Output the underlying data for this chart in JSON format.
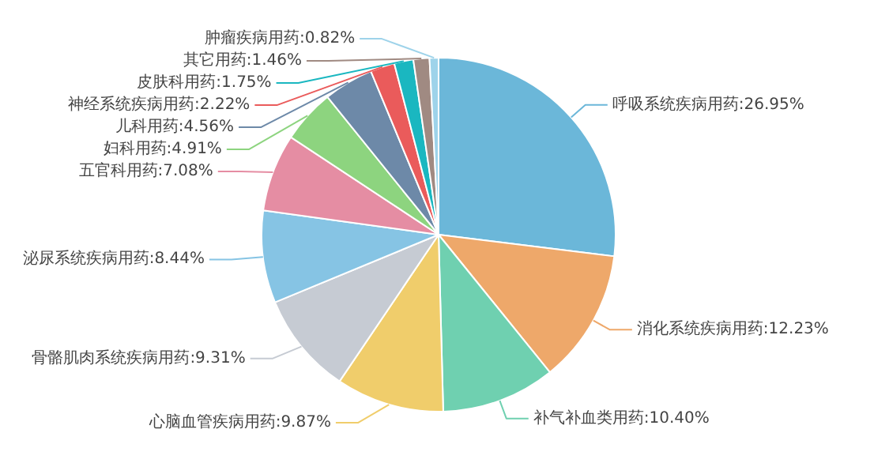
{
  "chart_data": {
    "type": "pie",
    "categories": [
      "呼吸系统疾病用药",
      "消化系统疾病用药",
      "补气补血类用药",
      "心脑血管疾病用药",
      "骨骼肌肉系统疾病用药",
      "泌尿系统疾病用药",
      "五官科用药",
      "妇科用药",
      "儿科用药",
      "神经系统疾病用药",
      "皮肤科用药",
      "其它用药",
      "肿瘤疾病用药"
    ],
    "values": [
      26.95,
      12.23,
      10.4,
      9.87,
      9.31,
      8.44,
      7.08,
      4.91,
      4.56,
      2.22,
      1.75,
      1.46,
      0.82
    ],
    "value_labels": [
      "26.95%",
      "12.23%",
      "10.40%",
      "9.87%",
      "9.31%",
      "8.44%",
      "7.08%",
      "4.91%",
      "4.56%",
      "2.22%",
      "1.75%",
      "1.46%",
      "0.82%"
    ],
    "colors": [
      "#6bb7d9",
      "#eea86a",
      "#6fd0b0",
      "#f0cd6b",
      "#c6cbd3",
      "#86c4e4",
      "#e58da3",
      "#8dd47f",
      "#6d89a8",
      "#ea5b5b",
      "#1ab7c0",
      "#a08a82",
      "#9ed3ea"
    ],
    "legend": false
  }
}
